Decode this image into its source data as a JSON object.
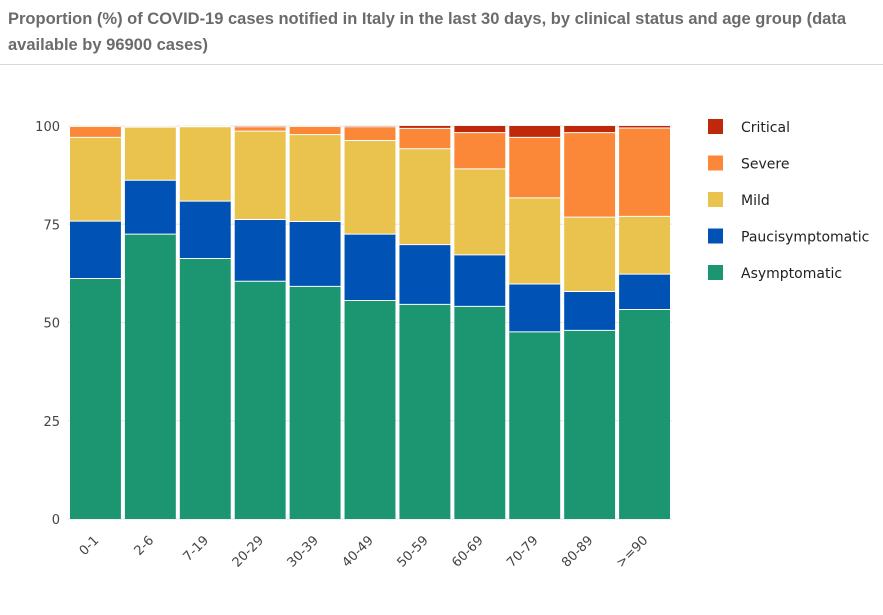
{
  "chart_data": {
    "type": "bar",
    "stacked": true,
    "title": "Proportion (%) of COVID-19 cases notified in Italy in the last 30 days, by clinical status and age group (data available by 96900 cases)",
    "xlabel": "",
    "ylabel": "",
    "ylim": [
      0,
      100
    ],
    "yticks": [
      "0",
      "25",
      "50",
      "75",
      "100"
    ],
    "ytick_values": [
      0,
      25,
      50,
      75,
      100
    ],
    "grid": true,
    "legend_position": "right",
    "categories": [
      "0-1",
      "2-6",
      "7-19",
      "20-29",
      "30-39",
      "40-49",
      "50-59",
      "60-69",
      "70-79",
      "80-89",
      ">=90"
    ],
    "series": [
      {
        "name": "Asymptomatic",
        "color": "#1b9670",
        "values": [
          61.2,
          72.5,
          66.3,
          60.5,
          59.2,
          55.6,
          54.6,
          54.1,
          47.6,
          48.0,
          53.3
        ]
      },
      {
        "name": "Paucisymptomatic",
        "color": "#0052b4",
        "values": [
          14.6,
          13.7,
          14.6,
          15.7,
          16.5,
          16.9,
          15.2,
          13.1,
          12.2,
          9.9,
          9.0
        ]
      },
      {
        "name": "Mild",
        "color": "#e9c34d",
        "values": [
          21.3,
          13.5,
          18.9,
          22.5,
          22.1,
          23.8,
          24.4,
          21.9,
          21.9,
          18.9,
          14.7
        ]
      },
      {
        "name": "Severe",
        "color": "#fb8838",
        "values": [
          2.8,
          0.3,
          0.1,
          1.1,
          2.1,
          3.5,
          5.2,
          9.2,
          15.4,
          21.5,
          22.5
        ]
      },
      {
        "name": "Critical",
        "color": "#c0280c",
        "values": [
          0.1,
          0.0,
          0.1,
          0.2,
          0.1,
          0.2,
          0.6,
          1.7,
          2.9,
          1.7,
          0.5
        ]
      }
    ],
    "legend_order": [
      "Critical",
      "Severe",
      "Mild",
      "Paucisymptomatic",
      "Asymptomatic"
    ]
  }
}
